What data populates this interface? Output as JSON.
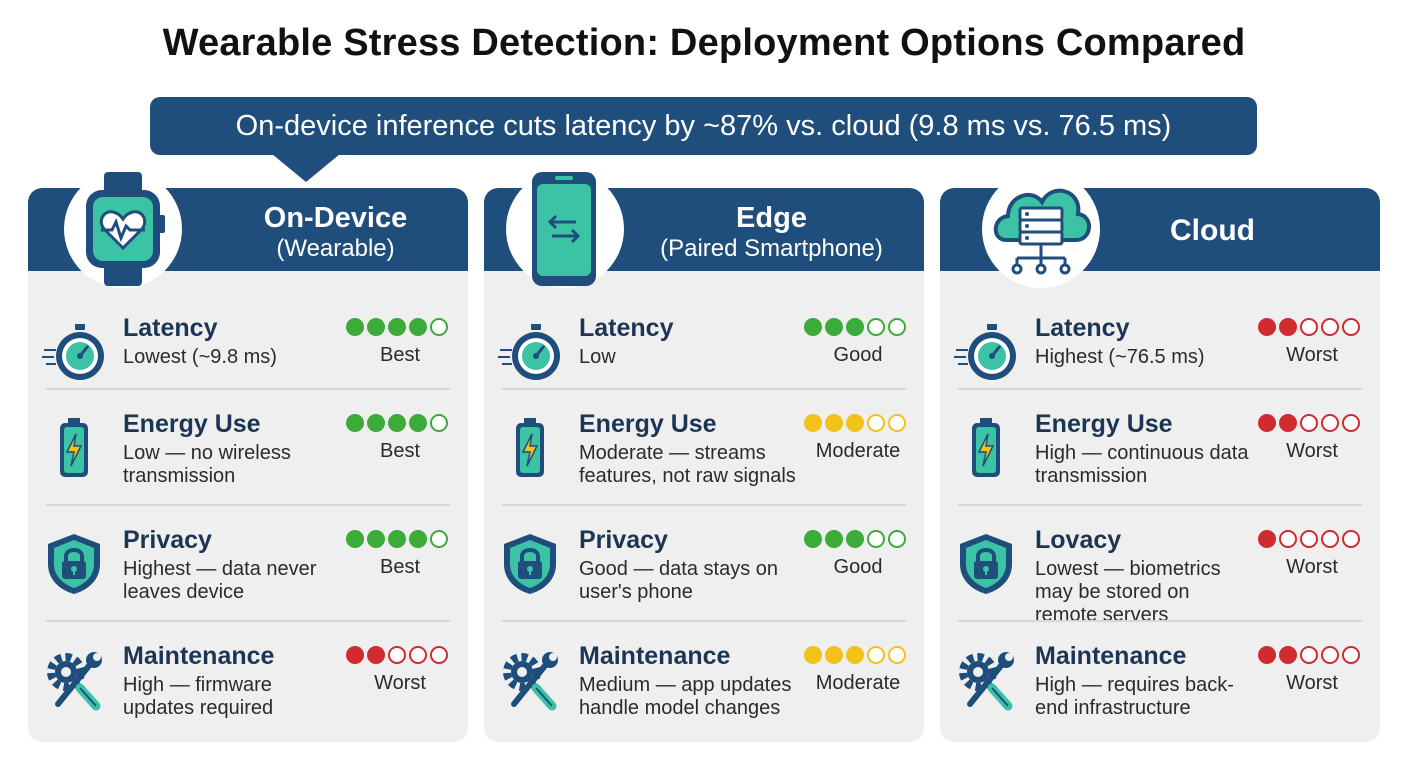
{
  "title": "Wearable Stress Detection: Deployment Options Compared",
  "banner": "On-device inference cuts latency by ~87% vs. cloud (9.8 ms vs. 76.5 ms)",
  "colors": {
    "navy": "#1f4e7c",
    "teal": "#3cc3a6",
    "green": "#3cab3a",
    "yellow": "#f2c21b",
    "red": "#d12a2f"
  },
  "cards": [
    {
      "title": "On-Device",
      "subtitle": "(Wearable)",
      "device_icon": "smartwatch-heart-icon",
      "rows": [
        {
          "icon": "stopwatch-icon",
          "title": "Latency",
          "desc": "Lowest (~9.8 ms)",
          "score": 4,
          "color": "green",
          "rating": "Best"
        },
        {
          "icon": "battery-icon",
          "title": "Energy Use",
          "desc": "Low — no wireless transmission",
          "score": 4,
          "color": "green",
          "rating": "Best"
        },
        {
          "icon": "shield-lock-icon",
          "title": "Privacy",
          "desc": "Highest — data never leaves device",
          "score": 4,
          "color": "green",
          "rating": "Best"
        },
        {
          "icon": "gear-wrench-icon",
          "title": "Maintenance",
          "desc": "High — firmware updates required",
          "score": 2,
          "color": "red",
          "rating": "Worst"
        }
      ]
    },
    {
      "title": "Edge",
      "subtitle": "(Paired Smartphone)",
      "device_icon": "smartphone-transfer-icon",
      "rows": [
        {
          "icon": "stopwatch-icon",
          "title": "Latency",
          "desc": "Low",
          "score": 3,
          "color": "green",
          "rating": "Good"
        },
        {
          "icon": "battery-icon",
          "title": "Energy Use",
          "desc": "Moderate — streams features, not raw signals",
          "score": 3,
          "color": "yellow",
          "rating": "Moderate"
        },
        {
          "icon": "shield-lock-icon",
          "title": "Privacy",
          "desc": "Good — data stays on user's phone",
          "score": 3,
          "color": "green",
          "rating": "Good"
        },
        {
          "icon": "gear-wrench-icon",
          "title": "Maintenance",
          "desc": "Medium — app updates handle model changes",
          "score": 3,
          "color": "yellow",
          "rating": "Moderate"
        }
      ]
    },
    {
      "title": "Cloud",
      "subtitle": "",
      "device_icon": "cloud-server-icon",
      "rows": [
        {
          "icon": "stopwatch-icon",
          "title": "Latency",
          "desc": "Highest (~76.5 ms)",
          "score": 2,
          "color": "red",
          "rating": "Worst"
        },
        {
          "icon": "battery-icon",
          "title": "Energy Use",
          "desc": "High — continuous data transmission",
          "score": 2,
          "color": "red",
          "rating": "Worst"
        },
        {
          "icon": "shield-lock-icon",
          "title": "Lovacy",
          "desc": "Lowest — biometrics may be stored on remote servers",
          "score": 1,
          "color": "red",
          "rating": "Worst"
        },
        {
          "icon": "gear-wrench-icon",
          "title": "Maintenance",
          "desc": "High — requires back-end infrastructure",
          "score": 2,
          "color": "red",
          "rating": "Worst"
        }
      ]
    }
  ]
}
